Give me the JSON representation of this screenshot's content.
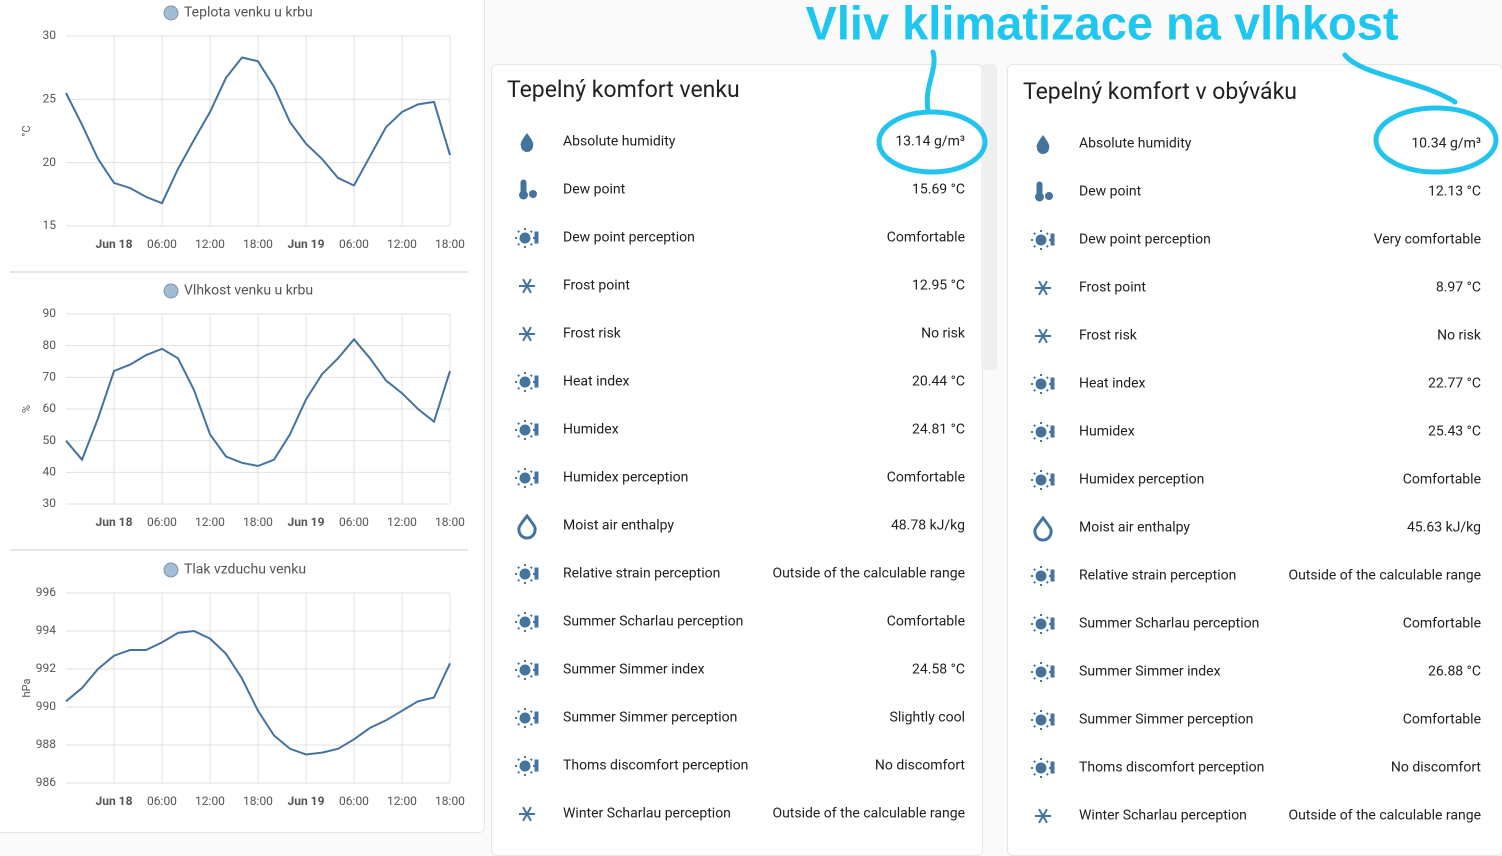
{
  "chart_data": [
    {
      "type": "line",
      "x": [
        -6,
        -4,
        -2,
        0,
        2,
        4,
        6,
        8,
        10,
        12,
        14,
        16,
        18,
        20,
        22,
        24,
        26,
        28,
        30,
        32,
        34,
        36,
        38,
        40,
        42
      ],
      "series": [
        {
          "name": "Teplota venku u krbu",
          "color": "#44739e",
          "values": [
            25.5,
            23.0,
            20.3,
            18.4,
            18.0,
            17.3,
            16.8,
            19.5,
            21.8,
            24.0,
            26.7,
            28.3,
            28.0,
            26.0,
            23.2,
            21.5,
            20.3,
            18.8,
            18.2,
            20.5,
            22.8,
            24.0,
            24.6,
            24.8,
            20.6
          ]
        }
      ],
      "ylabel": "°C",
      "xlim": [
        -6,
        42
      ],
      "ylim": [
        15,
        30
      ],
      "yticks": [
        15,
        20,
        25,
        30
      ],
      "xticks": [
        {
          "value": 0,
          "label": "Jun 18"
        },
        {
          "value": 6,
          "label": "06:00"
        },
        {
          "value": 12,
          "label": "12:00"
        },
        {
          "value": 18,
          "label": "18:00"
        },
        {
          "value": 24,
          "label": "Jun 19"
        },
        {
          "value": 30,
          "label": "06:00"
        },
        {
          "value": 36,
          "label": "12:00"
        },
        {
          "value": 42,
          "label": "18:00"
        }
      ],
      "grid": true
    },
    {
      "type": "line",
      "x": [
        -6,
        -4,
        -2,
        0,
        2,
        4,
        6,
        8,
        10,
        12,
        14,
        16,
        18,
        20,
        22,
        24,
        26,
        28,
        30,
        32,
        34,
        36,
        38,
        40,
        42
      ],
      "series": [
        {
          "name": "Vlhkost venku u krbu",
          "color": "#44739e",
          "values": [
            50,
            44,
            57,
            72,
            74,
            77,
            79,
            76,
            66,
            52,
            45,
            43,
            42,
            44,
            52,
            63,
            71,
            76,
            82,
            76,
            69,
            65,
            60,
            56,
            72
          ]
        }
      ],
      "ylabel": "%",
      "xlim": [
        -6,
        42
      ],
      "ylim": [
        30,
        90
      ],
      "yticks": [
        30,
        40,
        50,
        60,
        70,
        80,
        90
      ],
      "xticks": [
        {
          "value": 0,
          "label": "Jun 18"
        },
        {
          "value": 6,
          "label": "06:00"
        },
        {
          "value": 12,
          "label": "12:00"
        },
        {
          "value": 18,
          "label": "18:00"
        },
        {
          "value": 24,
          "label": "Jun 19"
        },
        {
          "value": 30,
          "label": "06:00"
        },
        {
          "value": 36,
          "label": "12:00"
        },
        {
          "value": 42,
          "label": "18:00"
        }
      ],
      "grid": true
    },
    {
      "type": "line",
      "x": [
        -6,
        -4,
        -2,
        0,
        2,
        4,
        6,
        8,
        10,
        12,
        14,
        16,
        18,
        20,
        22,
        24,
        26,
        28,
        30,
        32,
        34,
        36,
        38,
        40,
        42
      ],
      "series": [
        {
          "name": "Tlak vzduchu venku",
          "color": "#44739e",
          "values": [
            990.3,
            991.0,
            992.0,
            992.7,
            993.0,
            993.0,
            993.4,
            993.9,
            994.0,
            993.6,
            992.8,
            991.5,
            989.8,
            988.5,
            987.8,
            987.5,
            987.6,
            987.8,
            988.3,
            988.9,
            989.3,
            989.8,
            990.3,
            990.5,
            992.3
          ]
        }
      ],
      "ylabel": "hPa",
      "xlim": [
        -6,
        42
      ],
      "ylim": [
        986,
        996
      ],
      "yticks": [
        986,
        988,
        990,
        992,
        994,
        996
      ],
      "xticks": [
        {
          "value": 0,
          "label": "Jun 18"
        },
        {
          "value": 6,
          "label": "06:00"
        },
        {
          "value": 12,
          "label": "12:00"
        },
        {
          "value": 18,
          "label": "18:00"
        },
        {
          "value": 24,
          "label": "Jun 19"
        },
        {
          "value": 30,
          "label": "06:00"
        },
        {
          "value": 36,
          "label": "12:00"
        },
        {
          "value": 42,
          "label": "18:00"
        }
      ],
      "grid": true
    }
  ],
  "cards": [
    {
      "title": "Tepelný komfort venku",
      "rows": [
        [
          "Absolute humidity",
          "13.14 g/m³"
        ],
        [
          "Dew point",
          "15.69 °C"
        ],
        [
          "Dew point perception",
          "Comfortable"
        ],
        [
          "Frost point",
          "12.95 °C"
        ],
        [
          "Frost risk",
          "No risk"
        ],
        [
          "Heat index",
          "20.44 °C"
        ],
        [
          "Humidex",
          "24.81 °C"
        ],
        [
          "Humidex perception",
          "Comfortable"
        ],
        [
          "Moist air enthalpy",
          "48.78 kJ/kg"
        ],
        [
          "Relative strain perception",
          "Outside of the calculable range"
        ],
        [
          "Summer Scharlau perception",
          "Comfortable"
        ],
        [
          "Summer Simmer index",
          "24.58 °C"
        ],
        [
          "Summer Simmer perception",
          "Slightly cool"
        ],
        [
          "Thoms discomfort perception",
          "No discomfort"
        ],
        [
          "Winter Scharlau perception",
          "Outside of the calculable range"
        ]
      ]
    },
    {
      "title": "Tepelný komfort v obýváku",
      "rows": [
        [
          "Absolute humidity",
          "10.34 g/m³"
        ],
        [
          "Dew point",
          "12.13 °C"
        ],
        [
          "Dew point perception",
          "Very comfortable"
        ],
        [
          "Frost point",
          "8.97 °C"
        ],
        [
          "Frost risk",
          "No risk"
        ],
        [
          "Heat index",
          "22.77 °C"
        ],
        [
          "Humidex",
          "25.43 °C"
        ],
        [
          "Humidex perception",
          "Comfortable"
        ],
        [
          "Moist air enthalpy",
          "45.63 kJ/kg"
        ],
        [
          "Relative strain perception",
          "Outside of the calculable range"
        ],
        [
          "Summer Scharlau perception",
          "Comfortable"
        ],
        [
          "Summer Simmer index",
          "26.88 °C"
        ],
        [
          "Summer Simmer perception",
          "Comfortable"
        ],
        [
          "Thoms discomfort perception",
          "No discomfort"
        ],
        [
          "Winter Scharlau perception",
          "Outside of the calculable range"
        ]
      ]
    }
  ],
  "annotation": "Vliv klimatizace na vlhkost"
}
